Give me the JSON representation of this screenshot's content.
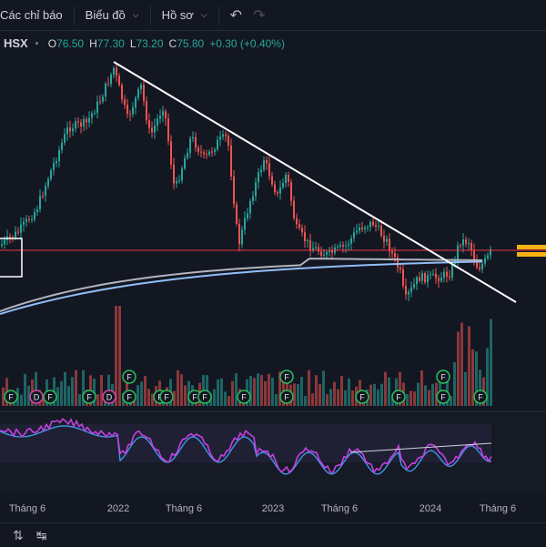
{
  "toolbar": {
    "indicators_label": "Các chỉ báo",
    "chart_type_label": "Biểu đồ",
    "profile_label": "Hồ sơ",
    "undo_icon": "undo-icon",
    "redo_icon": "redo-icon"
  },
  "legend": {
    "symbol": "HSX",
    "open_label": "O",
    "open": "76.50",
    "high_label": "H",
    "high": "77.30",
    "low_label": "L",
    "low": "73.20",
    "close_label": "C",
    "close": "75.80",
    "change": "+0.30 (+0.40%)"
  },
  "time_axis": {
    "labels": [
      "Tháng 6",
      "2022",
      "Tháng 6",
      "2023",
      "Tháng 6",
      "2024",
      "Tháng 6"
    ]
  },
  "event_marker": {
    "label": "F",
    "dividend_label": "D"
  },
  "colors": {
    "background": "#131722",
    "up": "#26a69a",
    "down": "#ef5350",
    "trendline": "#ffffff",
    "horizontal_line": "#f23645",
    "ma_long": "#b2b5be",
    "ma_short": "#90bff9",
    "rsi": "#c440e0",
    "rsi_ma": "#3f9cf0",
    "highlight": "#f9b114"
  },
  "bottom": {
    "icon": "bottom-toolbar-icon",
    "icon2": "layout-switch-icon"
  }
}
